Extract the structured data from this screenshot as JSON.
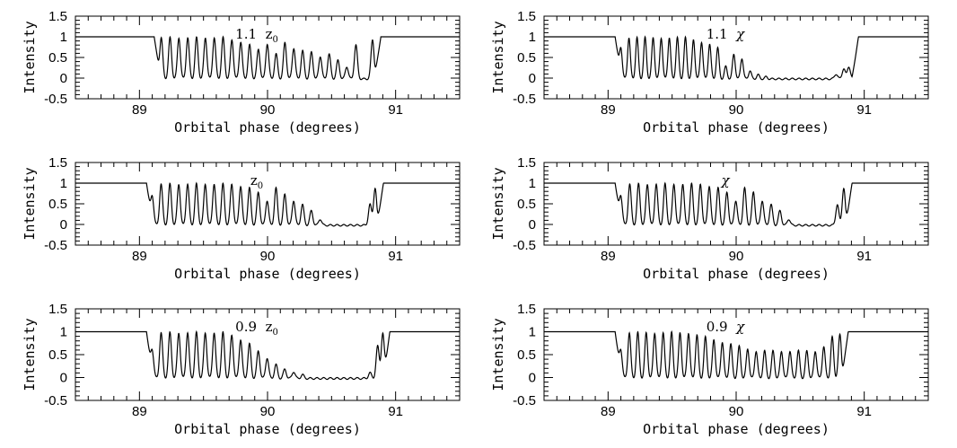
{
  "chart_data": [
    {
      "type": "line",
      "annotation": {
        "prefix": "1.1",
        "symbol": "z",
        "subscript": "0"
      },
      "xlabel": "Orbital phase (degrees)",
      "ylabel": "Intensity",
      "xlim": [
        88.5,
        91.5
      ],
      "ylim": [
        -0.5,
        1.5
      ],
      "x_ticks": [
        89,
        90,
        91
      ],
      "y_ticks": [
        -0.5,
        0,
        0.5,
        1,
        1.5
      ],
      "y_tick_labels": [
        "-0.5",
        "0",
        "0.5",
        "1",
        "1.5"
      ],
      "ingress": 89.14,
      "egress": 90.86,
      "fringe_start": 89.17,
      "fringe_spacing": 0.069,
      "fringe_amplitudes": [
        1.0,
        1.0,
        1.0,
        1.0,
        1.0,
        1.0,
        1.0,
        1.0,
        0.95,
        0.9,
        0.82,
        0.72,
        0.85,
        0.6,
        0.88,
        0.75,
        0.68,
        0.65,
        0.55,
        0.6,
        0.45,
        0.3
      ],
      "fringe_clip": 1.0,
      "egress_peaks": [
        {
          "x": 90.69,
          "y": 0.82
        },
        {
          "x": 90.82,
          "y": 0.95
        }
      ]
    },
    {
      "type": "line",
      "annotation": {
        "prefix": "1.1",
        "symbol": "χ",
        "subscript": ""
      },
      "xlabel": "Orbital phase (degrees)",
      "ylabel": "Intensity",
      "xlim": [
        88.5,
        91.5
      ],
      "ylim": [
        -0.5,
        1.5
      ],
      "x_ticks": [
        89,
        90,
        91
      ],
      "y_ticks": [
        -0.5,
        0,
        0.5,
        1,
        1.5
      ],
      "y_tick_labels": [
        "-0.5",
        "0",
        "0.5",
        "1",
        "1.5"
      ],
      "ingress": 89.08,
      "egress": 90.93,
      "fringe_start": 89.1,
      "fringe_spacing": 0.063,
      "fringe_amplitudes": [
        0.75,
        1.0,
        1.0,
        1.0,
        1.0,
        1.0,
        1.0,
        1.0,
        1.0,
        0.95,
        0.9,
        0.85,
        0.75,
        0.3,
        0.6,
        0.5,
        0.2,
        0.1,
        0.05
      ],
      "fringe_clip": 1.0,
      "egress_peaks": [
        {
          "x": 90.78,
          "y": 0.12
        },
        {
          "x": 90.84,
          "y": 0.25
        },
        {
          "x": 90.88,
          "y": 0.3
        }
      ]
    },
    {
      "type": "line",
      "annotation": {
        "prefix": "",
        "symbol": "z",
        "subscript": "0"
      },
      "xlabel": "Orbital phase (degrees)",
      "ylabel": "Intensity",
      "xlim": [
        88.5,
        91.5
      ],
      "ylim": [
        -0.5,
        1.5
      ],
      "x_ticks": [
        89,
        90,
        91
      ],
      "y_ticks": [
        -0.5,
        0,
        0.5,
        1,
        1.5
      ],
      "y_tick_labels": [
        "-0.5",
        "0",
        "0.5",
        "1",
        "1.5"
      ],
      "ingress": 89.08,
      "egress": 90.88,
      "fringe_start": 89.1,
      "fringe_spacing": 0.069,
      "fringe_amplitudes": [
        0.7,
        1.0,
        1.0,
        1.0,
        1.0,
        1.0,
        1.0,
        1.0,
        1.0,
        1.0,
        0.95,
        0.9,
        0.8,
        0.6,
        0.9,
        0.75,
        0.6,
        0.5,
        0.35,
        0.15
      ],
      "fringe_clip": 1.0,
      "egress_peaks": [
        {
          "x": 90.8,
          "y": 0.5
        },
        {
          "x": 90.84,
          "y": 0.9
        }
      ]
    },
    {
      "type": "line",
      "annotation": {
        "prefix": "",
        "symbol": "χ",
        "subscript": ""
      },
      "xlabel": "Orbital phase (degrees)",
      "ylabel": "Intensity",
      "xlim": [
        88.5,
        91.5
      ],
      "ylim": [
        -0.5,
        1.5
      ],
      "x_ticks": [
        89,
        90,
        91
      ],
      "y_ticks": [
        -0.5,
        0,
        0.5,
        1,
        1.5
      ],
      "y_tick_labels": [
        "-0.5",
        "0",
        "0.5",
        "1",
        "1.5"
      ],
      "ingress": 89.08,
      "egress": 90.88,
      "fringe_start": 89.1,
      "fringe_spacing": 0.069,
      "fringe_amplitudes": [
        0.7,
        1.0,
        1.0,
        1.0,
        1.0,
        1.0,
        1.0,
        1.0,
        1.0,
        1.0,
        0.95,
        0.9,
        0.8,
        0.6,
        0.9,
        0.8,
        0.6,
        0.5,
        0.35,
        0.15
      ],
      "fringe_clip": 1.0,
      "egress_peaks": [
        {
          "x": 90.79,
          "y": 0.5
        },
        {
          "x": 90.84,
          "y": 0.9
        }
      ]
    },
    {
      "type": "line",
      "annotation": {
        "prefix": "0.9",
        "symbol": "z",
        "subscript": "0"
      },
      "xlabel": "Orbital phase (degrees)",
      "ylabel": "Intensity",
      "xlim": [
        88.5,
        91.5
      ],
      "ylim": [
        -0.5,
        1.5
      ],
      "x_ticks": [
        89,
        90,
        91
      ],
      "y_ticks": [
        -0.5,
        0,
        0.5,
        1,
        1.5
      ],
      "y_tick_labels": [
        "-0.5",
        "0",
        "0.5",
        "1",
        "1.5"
      ],
      "ingress": 89.08,
      "egress": 90.93,
      "fringe_start": 89.1,
      "fringe_spacing": 0.069,
      "fringe_amplitudes": [
        0.6,
        1.0,
        1.0,
        1.0,
        1.0,
        1.0,
        1.0,
        1.0,
        1.0,
        0.95,
        0.85,
        0.75,
        0.6,
        0.45,
        0.3,
        0.2,
        0.15,
        0.08
      ],
      "fringe_clip": 1.0,
      "egress_peaks": [
        {
          "x": 90.8,
          "y": 0.12
        },
        {
          "x": 90.86,
          "y": 0.7
        },
        {
          "x": 90.9,
          "y": 0.98
        }
      ]
    },
    {
      "type": "line",
      "annotation": {
        "prefix": "0.9",
        "symbol": "χ",
        "subscript": ""
      },
      "xlabel": "Orbital phase (degrees)",
      "ylabel": "Intensity",
      "xlim": [
        88.5,
        91.5
      ],
      "ylim": [
        -0.5,
        1.5
      ],
      "x_ticks": [
        89,
        90,
        91
      ],
      "y_ticks": [
        -0.5,
        0,
        0.5,
        1,
        1.5
      ],
      "y_tick_labels": [
        "-0.5",
        "0",
        "0.5",
        "1",
        "1.5"
      ],
      "ingress": 89.08,
      "egress": 90.85,
      "fringe_start": 89.1,
      "fringe_spacing": 0.066,
      "fringe_amplitudes": [
        0.6,
        1.0,
        1.0,
        1.0,
        1.0,
        1.0,
        1.0,
        1.0,
        1.0,
        0.95,
        0.9,
        0.85,
        0.8,
        0.75,
        0.7,
        0.65,
        0.6,
        0.6,
        0.6,
        0.6,
        0.6,
        0.6,
        0.6,
        0.6,
        0.7,
        0.9
      ],
      "fringe_clip": 1.0,
      "egress_peaks": [
        {
          "x": 90.81,
          "y": 0.95
        }
      ]
    }
  ]
}
